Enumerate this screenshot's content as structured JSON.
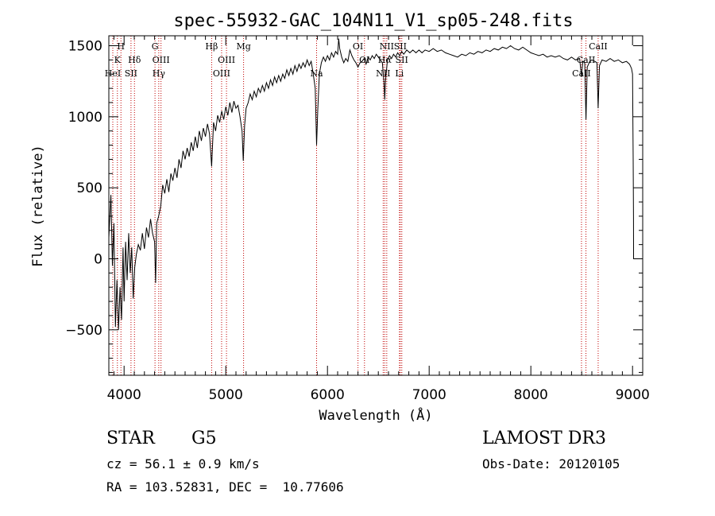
{
  "chart_data": {
    "type": "line",
    "title": "spec-55932-GAC_104N11_V1_sp05-248.fits",
    "xlabel": "Wavelength (Å)",
    "ylabel": "Flux (relative)",
    "xlim": [
      3850,
      9100
    ],
    "ylim": [
      -820,
      1570
    ],
    "xticks": [
      {
        "v": 4000,
        "label": "4000"
      },
      {
        "v": 5000,
        "label": "5000"
      },
      {
        "v": 6000,
        "label": "6000"
      },
      {
        "v": 7000,
        "label": "7000"
      },
      {
        "v": 8000,
        "label": "8000"
      },
      {
        "v": 9000,
        "label": "9000"
      }
    ],
    "yticks": [
      {
        "v": -500,
        "label": "−500"
      },
      {
        "v": 0,
        "label": "0"
      },
      {
        "v": 500,
        "label": "500"
      },
      {
        "v": 1000,
        "label": "1000"
      },
      {
        "v": 1500,
        "label": "1500"
      }
    ],
    "line_color": "#000000",
    "marker_color": "#c00000",
    "spectral_lines": [
      {
        "label": "K",
        "wl": 3934,
        "row": 1
      },
      {
        "label": "H",
        "wl": 3969,
        "row": 0
      },
      {
        "label": "HeI",
        "wl": 3889,
        "row": 2
      },
      {
        "label": "SII",
        "wl": 4068,
        "row": 2
      },
      {
        "label": "Hδ",
        "wl": 4102,
        "row": 1
      },
      {
        "label": "G",
        "wl": 4304,
        "row": 0
      },
      {
        "label": "Hγ",
        "wl": 4341,
        "row": 2
      },
      {
        "label": "OIII",
        "wl": 4363,
        "row": 1
      },
      {
        "label": "Hβ",
        "wl": 4861,
        "row": 0
      },
      {
        "label": "OIII",
        "wl": 4959,
        "row": 2
      },
      {
        "label": "OIII",
        "wl": 5007,
        "row": 1
      },
      {
        "label": "Mg",
        "wl": 5175,
        "row": 0
      },
      {
        "label": "Na",
        "wl": 5893,
        "row": 2
      },
      {
        "label": "OI",
        "wl": 6300,
        "row": 0
      },
      {
        "label": "OI",
        "wl": 6364,
        "row": 1
      },
      {
        "label": "NII",
        "wl": 6548,
        "row": 2
      },
      {
        "label": "Hα",
        "wl": 6563,
        "row": 1
      },
      {
        "label": "NII",
        "wl": 6583,
        "row": 0
      },
      {
        "label": "Li",
        "wl": 6708,
        "row": 2
      },
      {
        "label": "SII",
        "wl": 6716,
        "row": 0
      },
      {
        "label": "SII",
        "wl": 6731,
        "row": 1
      },
      {
        "label": "CaII",
        "wl": 8498,
        "row": 2
      },
      {
        "label": "CaII",
        "wl": 8542,
        "row": 1
      },
      {
        "label": "CaII",
        "wl": 8662,
        "row": 0
      }
    ],
    "series": [
      {
        "name": "flux",
        "points": [
          [
            3850,
            150
          ],
          [
            3870,
            450
          ],
          [
            3885,
            -50
          ],
          [
            3900,
            250
          ],
          [
            3915,
            -480
          ],
          [
            3930,
            -150
          ],
          [
            3945,
            -500
          ],
          [
            3960,
            -200
          ],
          [
            3975,
            -430
          ],
          [
            3990,
            80
          ],
          [
            4000,
            -300
          ],
          [
            4015,
            120
          ],
          [
            4030,
            -150
          ],
          [
            4045,
            180
          ],
          [
            4060,
            -100
          ],
          [
            4075,
            80
          ],
          [
            4090,
            -280
          ],
          [
            4105,
            -60
          ],
          [
            4120,
            30
          ],
          [
            4140,
            100
          ],
          [
            4160,
            60
          ],
          [
            4180,
            180
          ],
          [
            4200,
            70
          ],
          [
            4220,
            220
          ],
          [
            4240,
            150
          ],
          [
            4260,
            280
          ],
          [
            4280,
            180
          ],
          [
            4300,
            120
          ],
          [
            4310,
            -170
          ],
          [
            4320,
            250
          ],
          [
            4340,
            300
          ],
          [
            4360,
            370
          ],
          [
            4380,
            520
          ],
          [
            4400,
            460
          ],
          [
            4420,
            560
          ],
          [
            4440,
            470
          ],
          [
            4460,
            600
          ],
          [
            4480,
            550
          ],
          [
            4500,
            640
          ],
          [
            4520,
            570
          ],
          [
            4540,
            700
          ],
          [
            4560,
            640
          ],
          [
            4580,
            760
          ],
          [
            4600,
            700
          ],
          [
            4620,
            780
          ],
          [
            4640,
            720
          ],
          [
            4660,
            820
          ],
          [
            4680,
            760
          ],
          [
            4700,
            860
          ],
          [
            4720,
            780
          ],
          [
            4740,
            900
          ],
          [
            4760,
            830
          ],
          [
            4780,
            920
          ],
          [
            4800,
            860
          ],
          [
            4820,
            950
          ],
          [
            4840,
            880
          ],
          [
            4861,
            650
          ],
          [
            4880,
            960
          ],
          [
            4900,
            900
          ],
          [
            4920,
            1010
          ],
          [
            4940,
            960
          ],
          [
            4960,
            1040
          ],
          [
            4980,
            980
          ],
          [
            5000,
            1070
          ],
          [
            5020,
            1010
          ],
          [
            5040,
            1100
          ],
          [
            5060,
            1030
          ],
          [
            5080,
            1110
          ],
          [
            5100,
            1060
          ],
          [
            5120,
            1080
          ],
          [
            5140,
            1000
          ],
          [
            5160,
            900
          ],
          [
            5172,
            690
          ],
          [
            5185,
            940
          ],
          [
            5200,
            1060
          ],
          [
            5220,
            1100
          ],
          [
            5240,
            1160
          ],
          [
            5260,
            1120
          ],
          [
            5280,
            1180
          ],
          [
            5300,
            1140
          ],
          [
            5320,
            1200
          ],
          [
            5340,
            1170
          ],
          [
            5360,
            1220
          ],
          [
            5380,
            1180
          ],
          [
            5400,
            1240
          ],
          [
            5420,
            1200
          ],
          [
            5440,
            1260
          ],
          [
            5460,
            1220
          ],
          [
            5480,
            1280
          ],
          [
            5500,
            1240
          ],
          [
            5520,
            1290
          ],
          [
            5540,
            1250
          ],
          [
            5560,
            1300
          ],
          [
            5580,
            1270
          ],
          [
            5600,
            1330
          ],
          [
            5620,
            1290
          ],
          [
            5640,
            1340
          ],
          [
            5660,
            1300
          ],
          [
            5680,
            1360
          ],
          [
            5700,
            1320
          ],
          [
            5720,
            1370
          ],
          [
            5740,
            1340
          ],
          [
            5760,
            1380
          ],
          [
            5780,
            1350
          ],
          [
            5800,
            1400
          ],
          [
            5820,
            1360
          ],
          [
            5840,
            1390
          ],
          [
            5860,
            1300
          ],
          [
            5880,
            1200
          ],
          [
            5893,
            800
          ],
          [
            5905,
            1050
          ],
          [
            5920,
            1300
          ],
          [
            5940,
            1380
          ],
          [
            5960,
            1420
          ],
          [
            5980,
            1390
          ],
          [
            6000,
            1430
          ],
          [
            6020,
            1400
          ],
          [
            6040,
            1450
          ],
          [
            6060,
            1420
          ],
          [
            6080,
            1460
          ],
          [
            6100,
            1440
          ],
          [
            6110,
            1550
          ],
          [
            6120,
            1480
          ],
          [
            6140,
            1420
          ],
          [
            6160,
            1380
          ],
          [
            6180,
            1410
          ],
          [
            6200,
            1390
          ],
          [
            6220,
            1470
          ],
          [
            6240,
            1430
          ],
          [
            6260,
            1400
          ],
          [
            6280,
            1380
          ],
          [
            6300,
            1350
          ],
          [
            6320,
            1380
          ],
          [
            6340,
            1390
          ],
          [
            6360,
            1410
          ],
          [
            6380,
            1370
          ],
          [
            6400,
            1420
          ],
          [
            6420,
            1400
          ],
          [
            6440,
            1430
          ],
          [
            6460,
            1410
          ],
          [
            6480,
            1440
          ],
          [
            6500,
            1420
          ],
          [
            6520,
            1400
          ],
          [
            6540,
            1380
          ],
          [
            6555,
            1250
          ],
          [
            6563,
            1120
          ],
          [
            6570,
            1250
          ],
          [
            6590,
            1400
          ],
          [
            6610,
            1430
          ],
          [
            6630,
            1410
          ],
          [
            6650,
            1440
          ],
          [
            6670,
            1420
          ],
          [
            6690,
            1450
          ],
          [
            6710,
            1430
          ],
          [
            6730,
            1460
          ],
          [
            6750,
            1440
          ],
          [
            6780,
            1470
          ],
          [
            6810,
            1450
          ],
          [
            6840,
            1470
          ],
          [
            6870,
            1450
          ],
          [
            6900,
            1470
          ],
          [
            6930,
            1450
          ],
          [
            6960,
            1470
          ],
          [
            7000,
            1460
          ],
          [
            7040,
            1480
          ],
          [
            7080,
            1460
          ],
          [
            7120,
            1470
          ],
          [
            7160,
            1450
          ],
          [
            7200,
            1440
          ],
          [
            7240,
            1430
          ],
          [
            7280,
            1420
          ],
          [
            7320,
            1440
          ],
          [
            7360,
            1430
          ],
          [
            7400,
            1450
          ],
          [
            7440,
            1440
          ],
          [
            7480,
            1460
          ],
          [
            7520,
            1450
          ],
          [
            7560,
            1470
          ],
          [
            7600,
            1460
          ],
          [
            7640,
            1480
          ],
          [
            7680,
            1470
          ],
          [
            7720,
            1490
          ],
          [
            7760,
            1480
          ],
          [
            7800,
            1500
          ],
          [
            7840,
            1480
          ],
          [
            7880,
            1470
          ],
          [
            7920,
            1490
          ],
          [
            7960,
            1470
          ],
          [
            8000,
            1450
          ],
          [
            8040,
            1440
          ],
          [
            8080,
            1430
          ],
          [
            8120,
            1440
          ],
          [
            8160,
            1420
          ],
          [
            8200,
            1430
          ],
          [
            8240,
            1420
          ],
          [
            8280,
            1430
          ],
          [
            8320,
            1410
          ],
          [
            8360,
            1400
          ],
          [
            8400,
            1420
          ],
          [
            8440,
            1400
          ],
          [
            8480,
            1410
          ],
          [
            8498,
            1280
          ],
          [
            8510,
            1390
          ],
          [
            8530,
            1380
          ],
          [
            8542,
            980
          ],
          [
            8555,
            1350
          ],
          [
            8580,
            1390
          ],
          [
            8600,
            1400
          ],
          [
            8630,
            1390
          ],
          [
            8650,
            1380
          ],
          [
            8662,
            1060
          ],
          [
            8675,
            1360
          ],
          [
            8700,
            1400
          ],
          [
            8740,
            1390
          ],
          [
            8780,
            1410
          ],
          [
            8820,
            1390
          ],
          [
            8860,
            1400
          ],
          [
            8900,
            1380
          ],
          [
            8940,
            1390
          ],
          [
            8970,
            1370
          ],
          [
            8990,
            1340
          ],
          [
            9000,
            1300
          ],
          [
            9003,
            1000
          ],
          [
            9006,
            700
          ],
          [
            9009,
            300
          ],
          [
            9010,
            0
          ]
        ]
      }
    ]
  },
  "info": {
    "object_class": "STAR",
    "subclass": "G5",
    "survey": "LAMOST DR3",
    "redshift": "cz = 56.1 ± 0.9 km/s",
    "obs_date": "Obs-Date: 20120105",
    "coords": "RA = 103.52831, DEC =  10.77606"
  }
}
